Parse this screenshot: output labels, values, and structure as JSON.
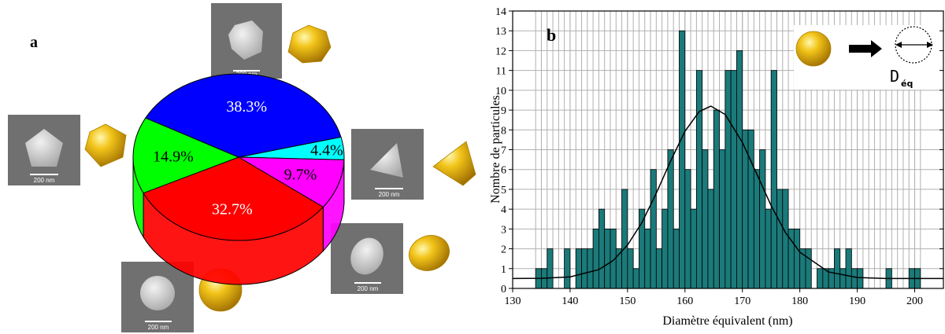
{
  "chart_data": [
    {
      "type": "pie",
      "label": "a",
      "values": [
        4.4,
        9.7,
        32.7,
        14.9,
        38.3
      ],
      "value_labels": [
        "4.4%",
        "9.7%",
        "32.7%",
        "14.9%",
        "38.3%"
      ],
      "colors": [
        "#00ffff",
        "#ff00ff",
        "#ff0000",
        "#00ff00",
        "#0000ff"
      ],
      "scale_bars": [
        "200 nm",
        "200 nm",
        "200 nm",
        "200 nm",
        "200 nm"
      ]
    },
    {
      "type": "histogram",
      "label": "b",
      "xlabel": "Diamètre équivalent (nm)",
      "ylabel": "Nombre de particules",
      "bins": [
        134,
        135,
        136,
        137,
        138,
        139,
        140,
        141,
        142,
        143,
        144,
        145,
        146,
        147,
        148,
        149,
        150,
        151,
        152,
        153,
        154,
        155,
        156,
        157,
        158,
        159,
        160,
        161,
        162,
        163,
        164,
        165,
        166,
        167,
        168,
        169,
        170,
        171,
        172,
        173,
        174,
        175,
        176,
        177,
        178,
        179,
        180,
        181,
        182,
        183,
        184,
        185,
        186,
        187,
        188,
        189,
        190,
        191,
        192,
        193,
        194,
        195,
        196,
        197,
        198,
        199,
        200,
        201
      ],
      "counts": [
        1,
        1,
        2,
        0,
        0,
        2,
        0,
        2,
        2,
        2,
        3,
        4,
        3,
        3,
        2,
        5,
        2,
        1,
        4,
        3,
        6,
        2,
        4,
        7,
        3,
        13,
        6,
        4,
        11,
        7,
        5,
        9,
        7,
        11,
        11,
        12,
        8,
        8,
        6,
        7,
        4,
        11,
        5,
        5,
        3,
        3,
        2,
        2,
        0,
        1,
        1,
        1,
        2,
        1,
        2,
        1,
        1,
        0,
        0,
        0,
        0,
        1,
        0,
        0,
        0,
        1,
        1
      ],
      "color": "#1b7a7a",
      "xlim": [
        130,
        205
      ],
      "ylim": [
        0,
        14
      ],
      "xticks": [
        130,
        140,
        150,
        160,
        170,
        180,
        190,
        200
      ],
      "yticks": [
        0,
        1,
        2,
        3,
        4,
        5,
        6,
        7,
        8,
        9,
        10,
        11,
        12,
        13,
        14
      ],
      "grid": true,
      "fit": {
        "x": [
          130,
          135,
          140,
          145,
          147.5,
          150,
          152.5,
          155,
          157.5,
          160,
          162.5,
          164.5,
          167,
          170,
          172.5,
          175,
          177.5,
          180,
          185,
          190,
          195,
          200,
          205
        ],
        "y": [
          0.5,
          0.51,
          0.58,
          0.95,
          1.41,
          2.19,
          3.32,
          4.8,
          6.43,
          7.93,
          8.93,
          9.2,
          8.78,
          7.37,
          5.78,
          4.18,
          2.82,
          1.83,
          0.83,
          0.55,
          0.5,
          0.5,
          0.5
        ]
      },
      "inset_label": "D",
      "inset_subscript": "éq"
    }
  ]
}
